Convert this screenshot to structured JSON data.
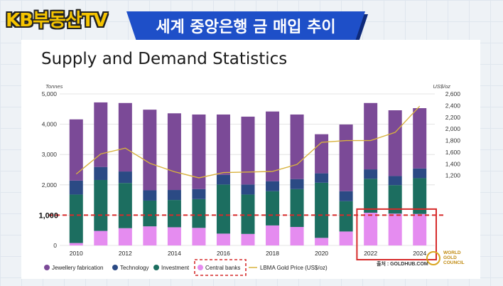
{
  "logo": "KB부동산TV",
  "banner": "세계 중앙은행 금 매입 추이",
  "page_title": "Supply and Demand Statistics",
  "source": "출처 : GOLDHUB.COM",
  "wgc_lines": [
    "WORLD",
    "GOLD",
    "COUNCIL"
  ],
  "colors": {
    "jewellery": "#7b4a97",
    "technology": "#2b4a84",
    "investment": "#1c6e60",
    "central_banks": "#e58cf0",
    "price": "#d8b23e",
    "highlight": "#d62b2b"
  },
  "chart_data": {
    "type": "bar",
    "stacked": true,
    "left_axis_label": "Tonnes",
    "right_axis_label": "US$/oz",
    "ylim": [
      0,
      5000
    ],
    "y2lim": [
      0,
      2600
    ],
    "yticks": [
      "5,000",
      "4,000",
      "3,000",
      "2,000",
      "1,000",
      "0"
    ],
    "y2ticks": [
      "2,600",
      "2,400",
      "2,200",
      "2,000",
      "1,800",
      "1,600",
      "1,400",
      "1,200"
    ],
    "xticks": [
      "2010",
      "2012",
      "2014",
      "2016",
      "2018",
      "2020",
      "2022",
      "2024"
    ],
    "categories": [
      "2010",
      "2011",
      "2012",
      "2013",
      "2014",
      "2015",
      "2016",
      "2017",
      "2018",
      "2019",
      "2020",
      "2021",
      "2022",
      "2023",
      "2024"
    ],
    "series": [
      {
        "name": "Central banks",
        "key": "central_banks",
        "values": [
          80,
          480,
          570,
          630,
          600,
          580,
          390,
          380,
          660,
          610,
          250,
          460,
          1080,
          1050,
          1040
        ]
      },
      {
        "name": "Investment",
        "key": "investment",
        "values": [
          1600,
          1680,
          1490,
          850,
          900,
          950,
          1620,
          1300,
          1130,
          1250,
          1820,
          1000,
          1120,
          940,
          1180
        ]
      },
      {
        "name": "Technology",
        "key": "technology",
        "values": [
          460,
          430,
          380,
          340,
          330,
          330,
          320,
          330,
          330,
          330,
          310,
          330,
          310,
          300,
          320
        ]
      },
      {
        "name": "Jewellery fabrication",
        "key": "jewellery",
        "values": [
          2020,
          2130,
          2260,
          2660,
          2530,
          2460,
          1990,
          2240,
          2300,
          2130,
          1290,
          2200,
          2190,
          2170,
          1990
        ]
      }
    ],
    "price_series": {
      "name": "LBMA Gold Price (US$/oz)",
      "values": [
        1225,
        1570,
        1670,
        1410,
        1265,
        1160,
        1250,
        1260,
        1270,
        1390,
        1770,
        1800,
        1800,
        1940,
        2390
      ]
    },
    "legend": [
      "Jewellery fabrication",
      "Technology",
      "Investment",
      "Central banks",
      "LBMA Gold Price (US$/oz)"
    ],
    "annotation_label": "1,000",
    "annotation_value": 1000,
    "highlight_categories": [
      "2022",
      "2023",
      "2024"
    ]
  }
}
